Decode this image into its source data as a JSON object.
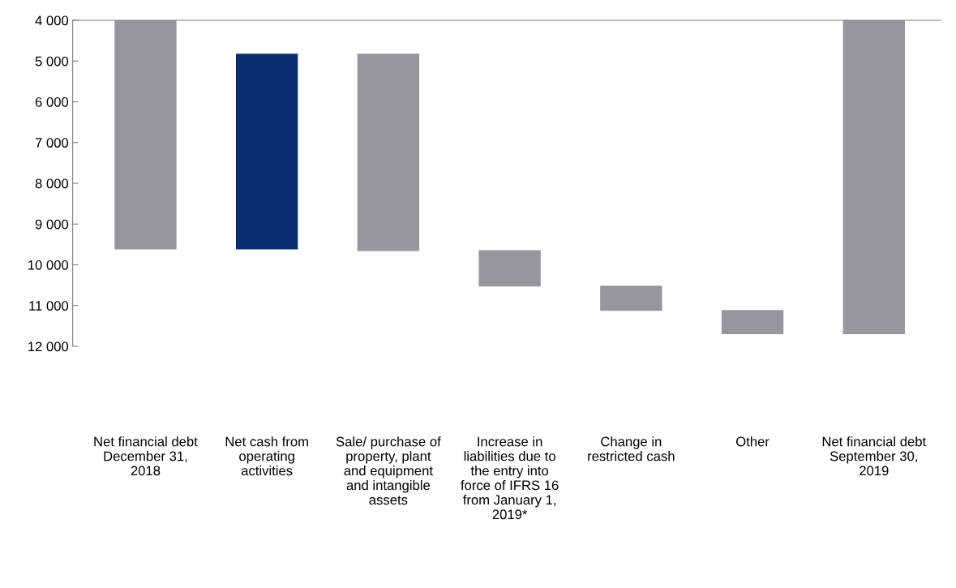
{
  "chart_data": {
    "type": "bar",
    "categories": [
      "Net financial debt December 31, 2018",
      "Net cash from operating activities",
      "Sale/ purchase of property, plant and equipment and intangible assets",
      "Increase in liabilities due to the entry into force of IFRS 16 from January 1, 2019*",
      "Change in restricted cash",
      "Other",
      "Net financial debt September 30, 2019"
    ],
    "base": [
      4000,
      4820,
      4820,
      9640,
      10510,
      11110,
      4000
    ],
    "values": [
      5620,
      4800,
      4840,
      890,
      620,
      590,
      7700
    ],
    "colors": [
      "#98959f",
      "#0b2d72",
      "#98959f",
      "#98959f",
      "#98959f",
      "#98959f",
      "#98959f"
    ],
    "ylim": [
      12000,
      4000
    ],
    "yticks": [
      {
        "value": 4000,
        "label": "4 000"
      },
      {
        "value": 5000,
        "label": "5 000"
      },
      {
        "value": 6000,
        "label": "6 000"
      },
      {
        "value": 7000,
        "label": "7 000"
      },
      {
        "value": 8000,
        "label": "8 000"
      },
      {
        "value": 9000,
        "label": "9 000"
      },
      {
        "value": 10000,
        "label": "10 000"
      },
      {
        "value": 11000,
        "label": "11 000"
      },
      {
        "value": 12000,
        "label": "12 000"
      }
    ],
    "grid": false
  }
}
